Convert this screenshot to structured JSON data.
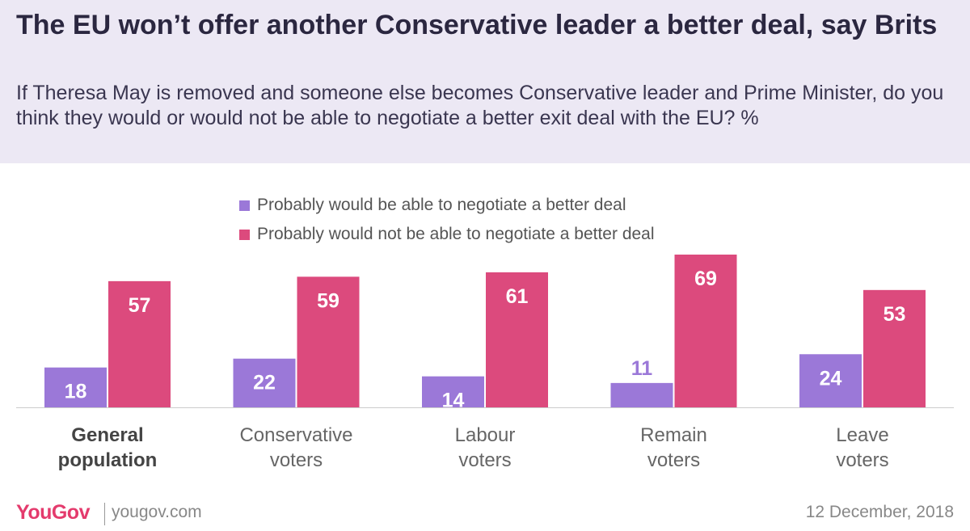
{
  "header": {
    "title": "The EU won’t offer another Conservative leader a better deal, say Brits",
    "subtitle": "If Theresa May is removed and someone else becomes Conservative leader and Prime Minister, do you think they would or would not be able to negotiate a better exit deal with the EU? %"
  },
  "chart_data": {
    "type": "bar",
    "categories": [
      [
        "General",
        "population"
      ],
      [
        "Conservative",
        "voters"
      ],
      [
        "Labour",
        "voters"
      ],
      [
        "Remain",
        "voters"
      ],
      [
        "Leave",
        "voters"
      ]
    ],
    "bold_category": 0,
    "series": [
      {
        "name": "Probably would be able to negotiate a better deal",
        "color": "#9b78d8",
        "values": [
          18,
          22,
          14,
          11,
          24
        ]
      },
      {
        "name": "Probably would not be able to negotiate a better deal",
        "color": "#dc4a7d",
        "values": [
          57,
          59,
          61,
          69,
          53
        ]
      }
    ],
    "ylim": [
      0,
      69
    ],
    "grid": false,
    "legend_position": "top-center",
    "title": "",
    "xlabel": "",
    "ylabel": ""
  },
  "footer": {
    "logo": "YouGov",
    "site": "yougov.com",
    "date": "12 December, 2018"
  }
}
